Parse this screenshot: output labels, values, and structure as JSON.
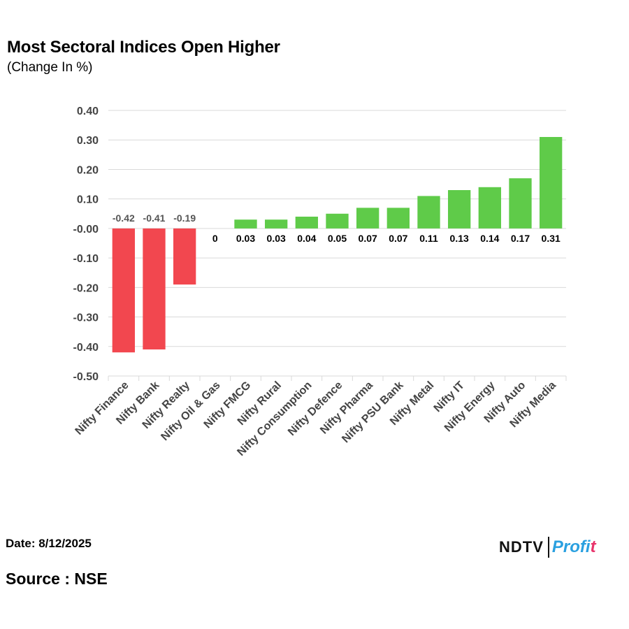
{
  "header": {
    "title": "Most Sectoral Indices Open Higher",
    "subtitle": "(Change In %)"
  },
  "footer": {
    "date": "Date: 8/12/2025",
    "source": "Source : NSE",
    "logo_left": "NDTV",
    "logo_right_main": "Profi",
    "logo_right_accent": "t"
  },
  "colors": {
    "negative": "#f2474f",
    "positive": "#5fcb49",
    "grid": "#d9d9d9",
    "axis_text": "#444444"
  },
  "chart_data": {
    "type": "bar",
    "title": "Most Sectoral Indices Open Higher",
    "subtitle": "(Change In %)",
    "xlabel": "",
    "ylabel": "",
    "ylim": [
      -0.5,
      0.4
    ],
    "yticks": [
      "0.40",
      "0.30",
      "0.20",
      "0.10",
      "-0.00",
      "-0.10",
      "-0.20",
      "-0.30",
      "-0.40",
      "-0.50"
    ],
    "ytick_values": [
      0.4,
      0.3,
      0.2,
      0.1,
      0.0,
      -0.1,
      -0.2,
      -0.3,
      -0.4,
      -0.5
    ],
    "grid": true,
    "legend": "none",
    "categories": [
      "Nifty Finance",
      "Nifty Bank",
      "Nifty Realty",
      "Nifty Oil & Gas",
      "Nifty FMCG",
      "Nifty Rural",
      "Nifty Consumption",
      "Nifty Defence",
      "Nifty Pharma",
      "Nifty PSU Bank",
      "Nifty Metal",
      "Nifty IT",
      "Nifty Energy",
      "Nifty Auto",
      "Nifty Media"
    ],
    "values": [
      -0.42,
      -0.41,
      -0.19,
      0,
      0.03,
      0.03,
      0.04,
      0.05,
      0.07,
      0.07,
      0.11,
      0.13,
      0.14,
      0.17,
      0.31
    ],
    "labels": [
      "-0.42",
      "-0.41",
      "-0.19",
      "0",
      "0.03",
      "0.03",
      "0.04",
      "0.05",
      "0.07",
      "0.07",
      "0.11",
      "0.13",
      "0.14",
      "0.17",
      "0.31"
    ]
  }
}
